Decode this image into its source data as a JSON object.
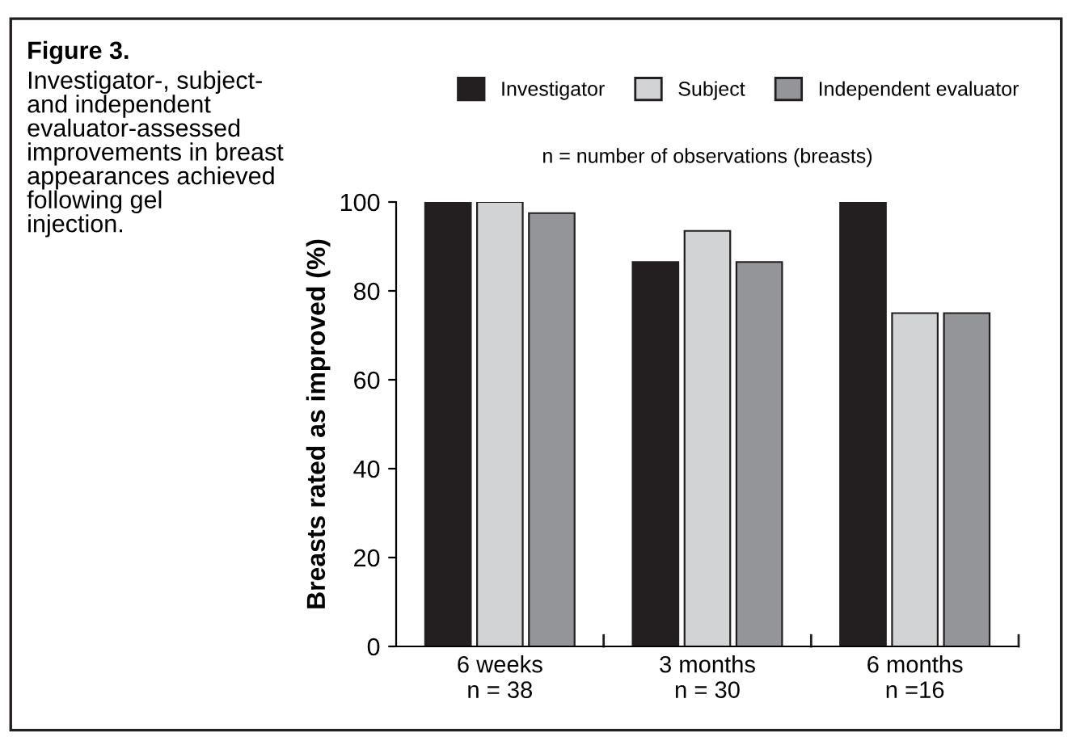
{
  "chart_data": {
    "type": "bar",
    "title": "Figure 3.",
    "subtitle": "Investigator-, subject-\nand independent\nevaluator-assessed\nimprovements in breast\nappearances achieved\nfollowing gel\ninjection.",
    "ylabel": "Breasts rated as improved (%)",
    "annotations": [
      "n = number of observations (breasts)"
    ],
    "categories": [
      "6 weeks\nn = 38",
      "3 months\nn = 30",
      "6 months\nn =16"
    ],
    "series": [
      {
        "name": "Investigator",
        "color": "#231f20",
        "values": [
          100,
          86.5,
          100
        ]
      },
      {
        "name": "Subject",
        "color": "#d1d3d4",
        "values": [
          100,
          93.5,
          75
        ]
      },
      {
        "name": "Independent evaluator",
        "color": "#939598",
        "values": [
          97.5,
          86.5,
          75
        ]
      }
    ],
    "ylim": [
      0,
      100
    ],
    "yticks": [
      0,
      20,
      40,
      60,
      80,
      100
    ],
    "grid": false,
    "legend": "top"
  }
}
